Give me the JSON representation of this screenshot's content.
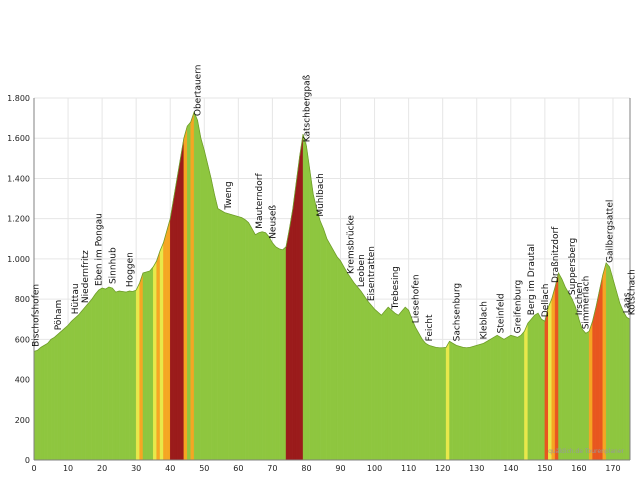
{
  "chart_data": {
    "type": "area",
    "xlim": [
      0,
      175
    ],
    "ylim": [
      0,
      1800
    ],
    "x_ticks": [
      0,
      10,
      20,
      30,
      40,
      50,
      60,
      70,
      80,
      90,
      100,
      110,
      120,
      130,
      140,
      150,
      160,
      170
    ],
    "y_ticks": [
      {
        "value": 0,
        "label": "0"
      },
      {
        "value": 200,
        "label": "200"
      },
      {
        "value": 400,
        "label": "400"
      },
      {
        "value": 600,
        "label": "600"
      },
      {
        "value": 800,
        "label": "800"
      },
      {
        "value": 1000,
        "label": "1.000"
      },
      {
        "value": 1200,
        "label": "1.200"
      },
      {
        "value": 1400,
        "label": "1.400"
      },
      {
        "value": 1600,
        "label": "1.600"
      },
      {
        "value": 1800,
        "label": "1.800"
      }
    ],
    "grid": true,
    "profile": [
      [
        0,
        540
      ],
      [
        1,
        545
      ],
      [
        2,
        560
      ],
      [
        3,
        570
      ],
      [
        4,
        580
      ],
      [
        5,
        600
      ],
      [
        6,
        610
      ],
      [
        7,
        625
      ],
      [
        8,
        640
      ],
      [
        9,
        655
      ],
      [
        10,
        670
      ],
      [
        11,
        690
      ],
      [
        12,
        705
      ],
      [
        13,
        720
      ],
      [
        14,
        740
      ],
      [
        15,
        760
      ],
      [
        16,
        780
      ],
      [
        17,
        800
      ],
      [
        18,
        825
      ],
      [
        19,
        845
      ],
      [
        20,
        855
      ],
      [
        21,
        850
      ],
      [
        22,
        860
      ],
      [
        23,
        855
      ],
      [
        24,
        835
      ],
      [
        25,
        840
      ],
      [
        26,
        838
      ],
      [
        27,
        835
      ],
      [
        28,
        840
      ],
      [
        29,
        838
      ],
      [
        30,
        845
      ],
      [
        31,
        880
      ],
      [
        32,
        930
      ],
      [
        33,
        935
      ],
      [
        34,
        940
      ],
      [
        35,
        960
      ],
      [
        36,
        990
      ],
      [
        37,
        1040
      ],
      [
        38,
        1080
      ],
      [
        39,
        1140
      ],
      [
        40,
        1200
      ],
      [
        41,
        1300
      ],
      [
        42,
        1400
      ],
      [
        43,
        1500
      ],
      [
        44,
        1600
      ],
      [
        45,
        1660
      ],
      [
        46,
        1680
      ],
      [
        47,
        1730
      ],
      [
        48,
        1690
      ],
      [
        49,
        1600
      ],
      [
        50,
        1540
      ],
      [
        51,
        1470
      ],
      [
        52,
        1400
      ],
      [
        53,
        1320
      ],
      [
        54,
        1250
      ],
      [
        55,
        1240
      ],
      [
        56,
        1230
      ],
      [
        57,
        1225
      ],
      [
        58,
        1220
      ],
      [
        59,
        1215
      ],
      [
        60,
        1210
      ],
      [
        61,
        1205
      ],
      [
        62,
        1195
      ],
      [
        63,
        1180
      ],
      [
        64,
        1150
      ],
      [
        65,
        1120
      ],
      [
        66,
        1130
      ],
      [
        67,
        1135
      ],
      [
        68,
        1130
      ],
      [
        69,
        1110
      ],
      [
        70,
        1080
      ],
      [
        71,
        1060
      ],
      [
        72,
        1050
      ],
      [
        73,
        1045
      ],
      [
        74,
        1060
      ],
      [
        75,
        1150
      ],
      [
        76,
        1250
      ],
      [
        77,
        1380
      ],
      [
        78,
        1510
      ],
      [
        79,
        1620
      ],
      [
        80,
        1560
      ],
      [
        81,
        1440
      ],
      [
        82,
        1320
      ],
      [
        83,
        1250
      ],
      [
        84,
        1190
      ],
      [
        85,
        1150
      ],
      [
        86,
        1100
      ],
      [
        87,
        1070
      ],
      [
        88,
        1040
      ],
      [
        89,
        1010
      ],
      [
        90,
        990
      ],
      [
        91,
        960
      ],
      [
        92,
        930
      ],
      [
        93,
        905
      ],
      [
        94,
        880
      ],
      [
        95,
        860
      ],
      [
        96,
        840
      ],
      [
        97,
        815
      ],
      [
        98,
        790
      ],
      [
        99,
        770
      ],
      [
        100,
        750
      ],
      [
        101,
        735
      ],
      [
        102,
        720
      ],
      [
        103,
        740
      ],
      [
        104,
        760
      ],
      [
        105,
        745
      ],
      [
        106,
        730
      ],
      [
        107,
        720
      ],
      [
        108,
        740
      ],
      [
        109,
        760
      ],
      [
        110,
        745
      ],
      [
        111,
        700
      ],
      [
        112,
        660
      ],
      [
        113,
        630
      ],
      [
        114,
        600
      ],
      [
        115,
        580
      ],
      [
        116,
        570
      ],
      [
        117,
        565
      ],
      [
        118,
        560
      ],
      [
        119,
        558
      ],
      [
        120,
        558
      ],
      [
        121,
        560
      ],
      [
        122,
        590
      ],
      [
        123,
        580
      ],
      [
        124,
        570
      ],
      [
        125,
        565
      ],
      [
        126,
        560
      ],
      [
        127,
        558
      ],
      [
        128,
        560
      ],
      [
        129,
        565
      ],
      [
        130,
        570
      ],
      [
        131,
        575
      ],
      [
        132,
        580
      ],
      [
        133,
        590
      ],
      [
        134,
        600
      ],
      [
        135,
        610
      ],
      [
        136,
        620
      ],
      [
        137,
        610
      ],
      [
        138,
        600
      ],
      [
        139,
        610
      ],
      [
        140,
        620
      ],
      [
        141,
        615
      ],
      [
        142,
        610
      ],
      [
        143,
        620
      ],
      [
        144,
        640
      ],
      [
        145,
        680
      ],
      [
        146,
        700
      ],
      [
        147,
        720
      ],
      [
        148,
        730
      ],
      [
        149,
        700
      ],
      [
        150,
        690
      ],
      [
        151,
        760
      ],
      [
        152,
        800
      ],
      [
        153,
        860
      ],
      [
        154,
        930
      ],
      [
        155,
        900
      ],
      [
        156,
        860
      ],
      [
        157,
        830
      ],
      [
        158,
        800
      ],
      [
        159,
        760
      ],
      [
        160,
        700
      ],
      [
        161,
        650
      ],
      [
        162,
        630
      ],
      [
        163,
        640
      ],
      [
        164,
        690
      ],
      [
        165,
        760
      ],
      [
        166,
        840
      ],
      [
        167,
        920
      ],
      [
        168,
        980
      ],
      [
        169,
        960
      ],
      [
        170,
        900
      ],
      [
        171,
        840
      ],
      [
        172,
        780
      ],
      [
        173,
        740
      ],
      [
        174,
        710
      ],
      [
        175,
        700
      ]
    ],
    "places": [
      {
        "km": 0.5,
        "name": "Bischofshofen"
      },
      {
        "km": 7,
        "name": "Pöham"
      },
      {
        "km": 12,
        "name": "Hüttau"
      },
      {
        "km": 15,
        "name": "Niedernfritz"
      },
      {
        "km": 19,
        "name": "Eben im Pongau"
      },
      {
        "km": 23,
        "name": "Sinnhub"
      },
      {
        "km": 28,
        "name": "Hoggen"
      },
      {
        "km": 48,
        "name": "Obertauern"
      },
      {
        "km": 57,
        "name": "Tweng"
      },
      {
        "km": 66,
        "name": "Mauterndorf"
      },
      {
        "km": 70,
        "name": "Neuseß"
      },
      {
        "km": 80,
        "name": "Katschbergpaß"
      },
      {
        "km": 84,
        "name": "Mühlbach"
      },
      {
        "km": 93,
        "name": "Kremsbrücke"
      },
      {
        "km": 96,
        "name": "Leoben"
      },
      {
        "km": 99,
        "name": "Eisentratten"
      },
      {
        "km": 106,
        "name": "Trebesing"
      },
      {
        "km": 112,
        "name": "Liesehofen"
      },
      {
        "km": 116,
        "name": "Feicht"
      },
      {
        "km": 124,
        "name": "Sachsenburg"
      },
      {
        "km": 132,
        "name": "Kleblach"
      },
      {
        "km": 137,
        "name": "Steinfeld"
      },
      {
        "km": 142,
        "name": "Greifenburg"
      },
      {
        "km": 146,
        "name": "Berg im Drautal"
      },
      {
        "km": 150,
        "name": "Dellach"
      },
      {
        "km": 153,
        "name": "Draßnitzdorf"
      },
      {
        "km": 158,
        "name": "Suppersberg"
      },
      {
        "km": 160,
        "name": "Irschen"
      },
      {
        "km": 162,
        "name": "Simmerlach"
      },
      {
        "km": 169,
        "name": "Gailbergsattel"
      },
      {
        "km": 174,
        "name": "Laas"
      },
      {
        "km": 175.5,
        "name": "Kötschach"
      }
    ],
    "gradient_colors": {
      "flat": "#8ec63f",
      "moderate": "#e8e84a",
      "steep": "#f5a623",
      "very_steep": "#e8561f",
      "extreme": "#9b1b1b"
    },
    "watermark": "quäldich.de Tourenplaner"
  },
  "colors": {
    "grid": "#e6e6e6",
    "axis": "#808080",
    "area_base": "#8ec63f"
  }
}
